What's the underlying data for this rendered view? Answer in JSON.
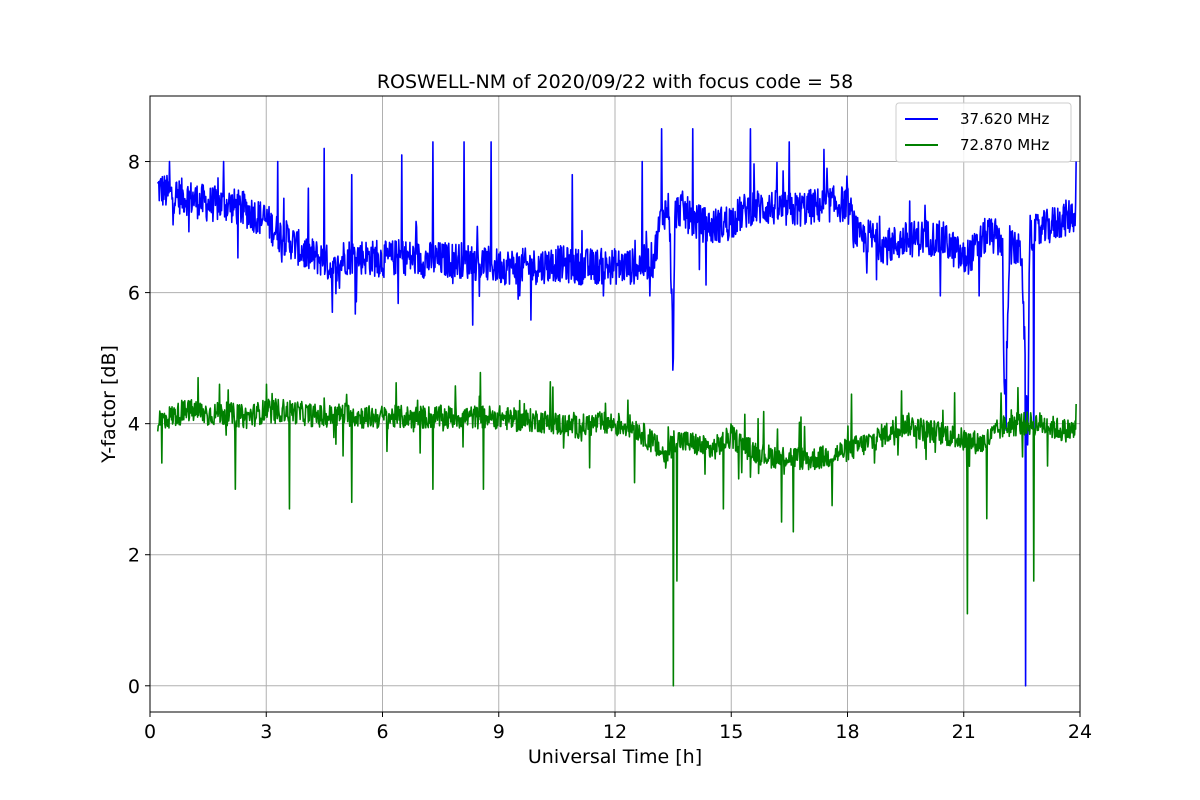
{
  "chart_data": {
    "type": "line",
    "title": "ROSWELL-NM of 2020/09/22 with focus code = 58",
    "xlabel": "Universal Time [h]",
    "ylabel": "Y-factor [dB]",
    "xlim": [
      0,
      24
    ],
    "ylim": [
      -0.4,
      9.0
    ],
    "xticks": [
      "0",
      "3",
      "6",
      "9",
      "12",
      "15",
      "18",
      "21",
      "24"
    ],
    "yticks": [
      "0",
      "2",
      "4",
      "6",
      "8"
    ],
    "grid": true,
    "legend_position": "top-right",
    "series": [
      {
        "name": "37.620 MHz",
        "color": "#0000ff",
        "x": [
          0.2,
          0.5,
          1.0,
          1.5,
          2.0,
          2.5,
          3.0,
          3.3,
          3.6,
          4.0,
          4.5,
          4.8,
          5.0,
          5.5,
          6.0,
          6.5,
          7.0,
          7.5,
          8.0,
          8.5,
          9.0,
          9.5,
          10.0,
          10.5,
          11.0,
          11.5,
          12.0,
          12.5,
          13.0,
          13.2,
          13.4,
          13.5,
          13.55,
          13.7,
          14.0,
          14.5,
          15.0,
          15.5,
          16.0,
          16.5,
          17.0,
          17.5,
          18.0,
          18.3,
          18.6,
          19.0,
          19.5,
          20.0,
          20.5,
          21.0,
          21.3,
          21.6,
          22.0,
          22.05,
          22.2,
          22.5,
          22.65,
          22.7,
          22.8,
          23.0,
          23.5,
          23.9
        ],
        "values": [
          7.6,
          7.5,
          7.45,
          7.35,
          7.35,
          7.25,
          7.1,
          6.9,
          6.8,
          6.6,
          6.5,
          6.3,
          6.55,
          6.55,
          6.5,
          6.55,
          6.5,
          6.5,
          6.5,
          6.45,
          6.4,
          6.4,
          6.4,
          6.45,
          6.4,
          6.4,
          6.4,
          6.4,
          6.5,
          7.2,
          7.3,
          5.1,
          7.2,
          7.3,
          7.1,
          7.0,
          7.1,
          7.3,
          7.3,
          7.25,
          7.3,
          7.35,
          7.35,
          6.8,
          6.85,
          6.7,
          6.8,
          6.85,
          6.8,
          6.5,
          6.65,
          6.9,
          6.8,
          4.1,
          6.7,
          6.6,
          3.6,
          6.9,
          6.9,
          6.95,
          7.1,
          7.2
        ],
        "spikes": [
          [
            0.5,
            8.0
          ],
          [
            1.9,
            8.0
          ],
          [
            3.3,
            8.0
          ],
          [
            4.5,
            8.2
          ],
          [
            4.7,
            5.7
          ],
          [
            5.2,
            7.8
          ],
          [
            6.5,
            8.1
          ],
          [
            7.3,
            8.3
          ],
          [
            8.1,
            8.3
          ],
          [
            8.8,
            8.3
          ],
          [
            9.5,
            5.9
          ],
          [
            10.9,
            7.8
          ],
          [
            11.7,
            5.95
          ],
          [
            12.7,
            8.0
          ],
          [
            12.9,
            5.95
          ],
          [
            13.2,
            8.5
          ],
          [
            13.5,
            5.0
          ],
          [
            14.0,
            8.5
          ],
          [
            15.5,
            8.5
          ],
          [
            16.5,
            8.3
          ],
          [
            18.5,
            6.3
          ],
          [
            20.4,
            5.95
          ],
          [
            21.4,
            5.95
          ],
          [
            22.1,
            3.9
          ],
          [
            22.6,
            0.0
          ],
          [
            22.8,
            3.2
          ],
          [
            23.9,
            8.0
          ]
        ]
      },
      {
        "name": "72.870 MHz",
        "color": "#008000",
        "x": [
          0.2,
          0.5,
          1.0,
          1.5,
          2.0,
          2.5,
          3.0,
          3.5,
          4.0,
          4.5,
          5.0,
          5.5,
          6.0,
          6.5,
          7.0,
          7.5,
          8.0,
          8.5,
          9.0,
          9.5,
          10.0,
          10.5,
          11.0,
          11.5,
          12.0,
          12.5,
          13.0,
          13.3,
          13.5,
          13.6,
          14.0,
          14.5,
          15.0,
          15.5,
          16.0,
          16.5,
          17.0,
          17.5,
          18.0,
          18.5,
          19.0,
          19.5,
          20.0,
          20.5,
          21.0,
          21.5,
          22.0,
          22.5,
          23.0,
          23.5,
          23.9
        ],
        "values": [
          4.05,
          4.1,
          4.2,
          4.15,
          4.15,
          4.1,
          4.2,
          4.2,
          4.15,
          4.1,
          4.15,
          4.1,
          4.1,
          4.1,
          4.1,
          4.1,
          4.1,
          4.1,
          4.1,
          4.05,
          4.05,
          4.0,
          3.95,
          4.0,
          4.0,
          3.95,
          3.7,
          3.5,
          3.75,
          3.75,
          3.7,
          3.6,
          3.8,
          3.6,
          3.5,
          3.5,
          3.45,
          3.5,
          3.6,
          3.7,
          3.85,
          4.0,
          3.9,
          3.85,
          3.75,
          3.7,
          3.95,
          4.0,
          4.0,
          3.9,
          3.9
        ],
        "spikes": [
          [
            0.3,
            3.4
          ],
          [
            1.8,
            4.6
          ],
          [
            2.2,
            3.0
          ],
          [
            3.0,
            4.6
          ],
          [
            3.6,
            2.7
          ],
          [
            5.2,
            2.8
          ],
          [
            7.3,
            3.0
          ],
          [
            8.6,
            3.0
          ],
          [
            12.5,
            3.1
          ],
          [
            13.5,
            0.0
          ],
          [
            13.6,
            1.6
          ],
          [
            14.8,
            2.7
          ],
          [
            16.3,
            2.5
          ],
          [
            16.6,
            2.35
          ],
          [
            16.8,
            4.1
          ],
          [
            17.6,
            2.75
          ],
          [
            18.1,
            4.45
          ],
          [
            19.4,
            4.5
          ],
          [
            21.1,
            1.1
          ],
          [
            21.6,
            2.55
          ],
          [
            22.4,
            4.55
          ],
          [
            22.8,
            1.6
          ],
          [
            23.9,
            4.3
          ]
        ]
      }
    ]
  }
}
